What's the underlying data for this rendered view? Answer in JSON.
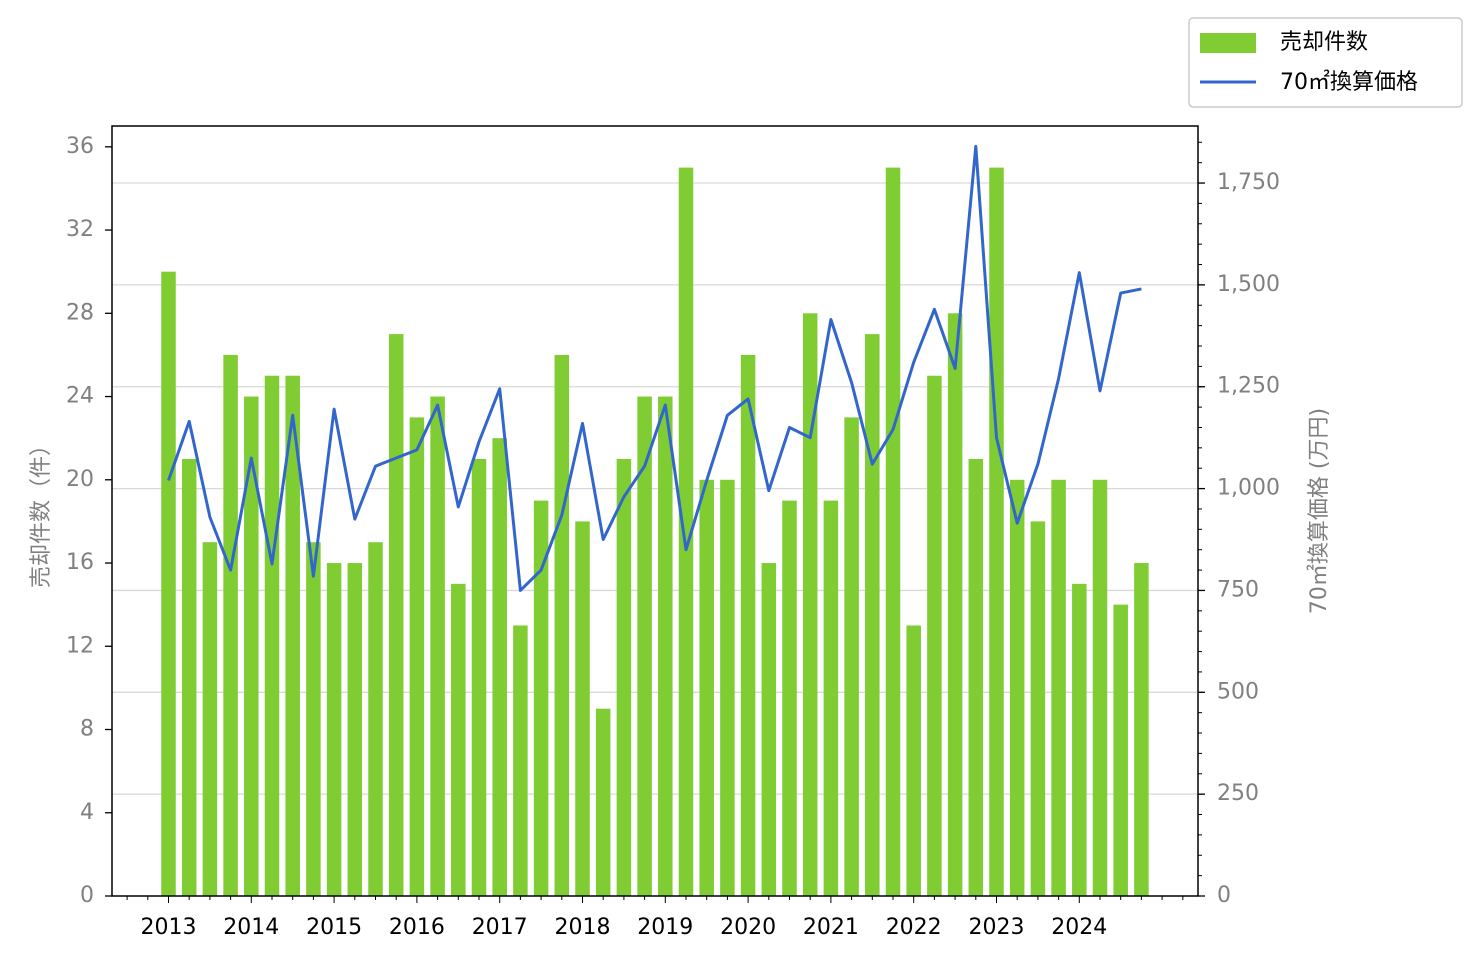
{
  "chart_data": {
    "type": "bar+line",
    "title": "",
    "ylabel_left": "売却件数（件）",
    "ylabel_right": "70㎡換算価格 (万円)",
    "ylim_left": [
      0,
      37
    ],
    "ylim_right": [
      0,
      1890
    ],
    "left_ticks": [
      "0",
      "4",
      "8",
      "12",
      "16",
      "20",
      "24",
      "28",
      "32",
      "36"
    ],
    "right_ticks": [
      "0",
      "250",
      "500",
      "750",
      "1,000",
      "1,250",
      "1,500",
      "1,750"
    ],
    "years": [
      "2013",
      "2014",
      "2015",
      "2016",
      "2017",
      "2018",
      "2019",
      "2020",
      "2021",
      "2022",
      "2023",
      "2024"
    ],
    "grid": "horizontal on right axis",
    "legend_position": "top-right outside",
    "colors": {
      "bar": "#7fcc33",
      "line": "#3366cc"
    },
    "series": [
      {
        "name": "売却件数",
        "kind": "bar",
        "axis": "left",
        "values": [
          30,
          21,
          17,
          26,
          24,
          25,
          25,
          17,
          16,
          16,
          17,
          27,
          23,
          24,
          15,
          21,
          22,
          13,
          19,
          26,
          18,
          9,
          21,
          24,
          24,
          35,
          20,
          20,
          26,
          16,
          19,
          28,
          19,
          23,
          27,
          35,
          13,
          25,
          28,
          21,
          35,
          20,
          18,
          20,
          15,
          20,
          14,
          16
        ]
      },
      {
        "name": "70㎡換算価格",
        "kind": "line",
        "axis": "right",
        "values": [
          1020,
          1165,
          930,
          800,
          1075,
          815,
          1180,
          785,
          1195,
          925,
          1055,
          1075,
          1095,
          1205,
          955,
          1115,
          1245,
          750,
          800,
          935,
          1160,
          875,
          980,
          1055,
          1205,
          850,
          1020,
          1180,
          1220,
          995,
          1150,
          1125,
          1415,
          1260,
          1060,
          1145,
          1310,
          1440,
          1295,
          1840,
          1125,
          915,
          1060,
          1270,
          1530,
          1240,
          1480,
          1490
        ]
      }
    ]
  }
}
